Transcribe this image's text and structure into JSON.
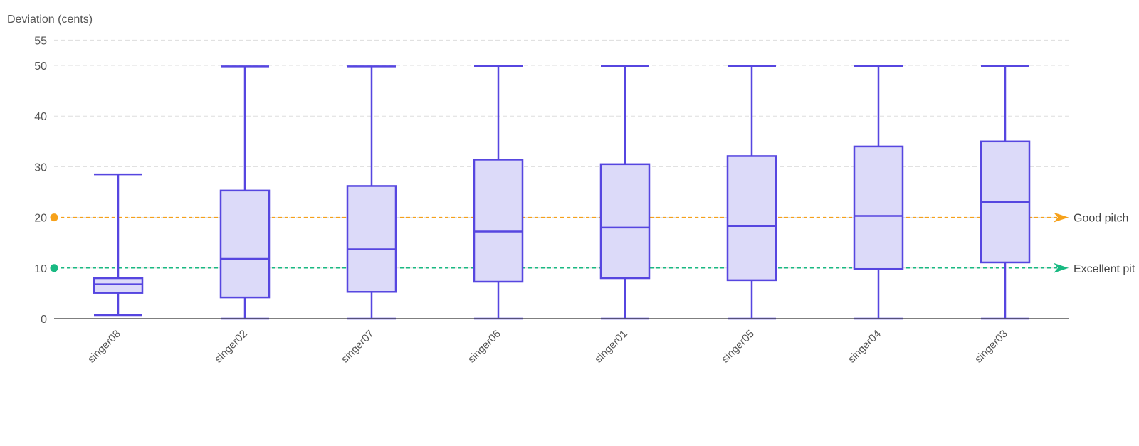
{
  "chart_data": {
    "type": "boxplot",
    "ylabel": "Deviation (cents)",
    "ylim": [
      0,
      55
    ],
    "y_ticks": [
      0,
      10,
      20,
      30,
      40,
      50,
      55
    ],
    "grid": true,
    "categories": [
      "singer08",
      "singer02",
      "singer07",
      "singer06",
      "singer01",
      "singer05",
      "singer04",
      "singer03"
    ],
    "boxes": [
      {
        "category": "singer08",
        "min": 0.7,
        "q1": 5.1,
        "median": 6.8,
        "q3": 8.0,
        "max": 28.5
      },
      {
        "category": "singer02",
        "min": 0.0,
        "q1": 4.2,
        "median": 11.8,
        "q3": 25.3,
        "max": 49.8
      },
      {
        "category": "singer07",
        "min": 0.0,
        "q1": 5.3,
        "median": 13.7,
        "q3": 26.2,
        "max": 49.8
      },
      {
        "category": "singer06",
        "min": 0.0,
        "q1": 7.3,
        "median": 17.2,
        "q3": 31.4,
        "max": 49.9
      },
      {
        "category": "singer01",
        "min": 0.0,
        "q1": 8.0,
        "median": 18.0,
        "q3": 30.5,
        "max": 49.9
      },
      {
        "category": "singer05",
        "min": 0.0,
        "q1": 7.6,
        "median": 18.3,
        "q3": 32.1,
        "max": 49.9
      },
      {
        "category": "singer04",
        "min": 0.0,
        "q1": 9.8,
        "median": 20.3,
        "q3": 34.0,
        "max": 49.9
      },
      {
        "category": "singer03",
        "min": 0.0,
        "q1": 11.1,
        "median": 23.0,
        "q3": 35.0,
        "max": 49.9
      }
    ],
    "reference_lines": [
      {
        "label": "Good pitch",
        "value": 20,
        "color": "#f6a11a"
      },
      {
        "label": "Excellent pit",
        "value": 10,
        "color": "#19b982"
      }
    ],
    "colors": {
      "box_stroke": "#5646e0",
      "box_fill": "#dcdaf9",
      "grid": "#dddddd",
      "axis": "#555555"
    }
  }
}
